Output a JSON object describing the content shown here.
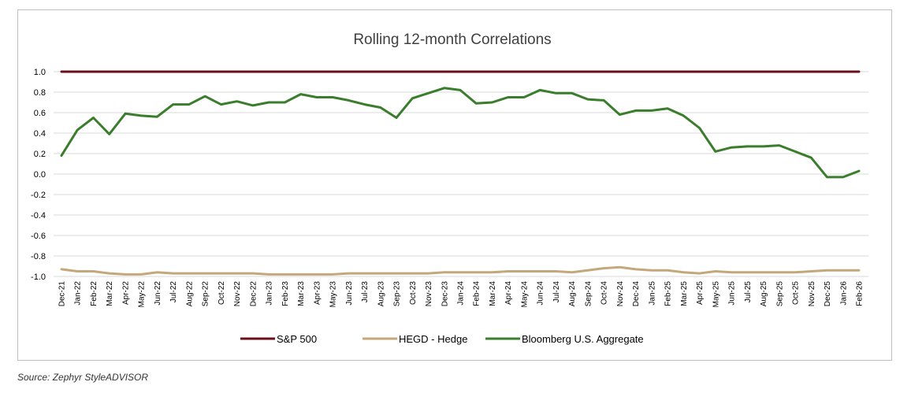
{
  "chart_data": {
    "type": "line",
    "title": "Rolling 12-month Correlations",
    "xlabel": "",
    "ylabel": "",
    "ylim": [
      -1.0,
      1.0
    ],
    "yticks": [
      "1.0",
      "0.8",
      "0.6",
      "0.4",
      "0.2",
      "0.0",
      "-0.2",
      "-0.4",
      "-0.6",
      "-0.8",
      "-1.0"
    ],
    "grid": true,
    "legend_position": "bottom",
    "categories": [
      "Dec-21",
      "Jan-22",
      "Feb-22",
      "Mar-22",
      "Apr-22",
      "May-22",
      "Jun-22",
      "Jul-22",
      "Aug-22",
      "Sep-22",
      "Oct-22",
      "Nov-22",
      "Dec-22",
      "Jan-23",
      "Feb-23",
      "Mar-23",
      "Apr-23",
      "May-23",
      "Jun-23",
      "Jul-23",
      "Aug-23",
      "Sep-23",
      "Oct-23",
      "Nov-23",
      "Dec-23",
      "Jan-24",
      "Feb-24",
      "Mar-24",
      "Apr-24",
      "May-24",
      "Jun-24",
      "Jul-24",
      "Aug-24",
      "Sep-24",
      "Oct-24",
      "Nov-24",
      "Dec-24",
      "Jan-25",
      "Feb-25",
      "Mar-25",
      "Apr-25",
      "May-25",
      "Jun-25",
      "Jul-25",
      "Aug-25",
      "Sep-25",
      "Oct-25",
      "Nov-25",
      "Dec-25",
      "Jan-26",
      "Feb-26"
    ],
    "series": [
      {
        "name": "S&P 500",
        "color": "#6b0f1a",
        "values": [
          1,
          1,
          1,
          1,
          1,
          1,
          1,
          1,
          1,
          1,
          1,
          1,
          1,
          1,
          1,
          1,
          1,
          1,
          1,
          1,
          1,
          1,
          1,
          1,
          1,
          1,
          1,
          1,
          1,
          1,
          1,
          1,
          1,
          1,
          1,
          1,
          1,
          1,
          1,
          1,
          1,
          1,
          1,
          1,
          1,
          1,
          1,
          1,
          1,
          1,
          1
        ]
      },
      {
        "name": "HEGD - Hedge",
        "color": "#c4a87a",
        "values": [
          -0.93,
          -0.95,
          -0.95,
          -0.97,
          -0.98,
          -0.98,
          -0.96,
          -0.97,
          -0.97,
          -0.97,
          -0.97,
          -0.97,
          -0.97,
          -0.98,
          -0.98,
          -0.98,
          -0.98,
          -0.98,
          -0.97,
          -0.97,
          -0.97,
          -0.97,
          -0.97,
          -0.97,
          -0.96,
          -0.96,
          -0.96,
          -0.96,
          -0.95,
          -0.95,
          -0.95,
          -0.95,
          -0.96,
          -0.94,
          -0.92,
          -0.91,
          -0.93,
          -0.94,
          -0.94,
          -0.96,
          -0.97,
          -0.95,
          -0.96,
          -0.96,
          -0.96,
          -0.96,
          -0.96,
          -0.95,
          -0.94,
          -0.94,
          -0.94
        ]
      },
      {
        "name": "Bloomberg U.S. Aggregate",
        "color": "#3a7d2c",
        "values": [
          0.18,
          0.43,
          0.55,
          0.39,
          0.59,
          0.57,
          0.56,
          0.68,
          0.68,
          0.76,
          0.68,
          0.71,
          0.67,
          0.7,
          0.7,
          0.78,
          0.75,
          0.75,
          0.72,
          0.68,
          0.65,
          0.55,
          0.74,
          0.79,
          0.84,
          0.82,
          0.69,
          0.7,
          0.75,
          0.75,
          0.82,
          0.79,
          0.79,
          0.73,
          0.72,
          0.58,
          0.62,
          0.62,
          0.64,
          0.57,
          0.45,
          0.22,
          0.26,
          0.27,
          0.27,
          0.28,
          0.22,
          0.16,
          -0.03,
          -0.03,
          0.03
        ]
      }
    ]
  },
  "source_note": "Source: Zephyr StyleADVISOR"
}
